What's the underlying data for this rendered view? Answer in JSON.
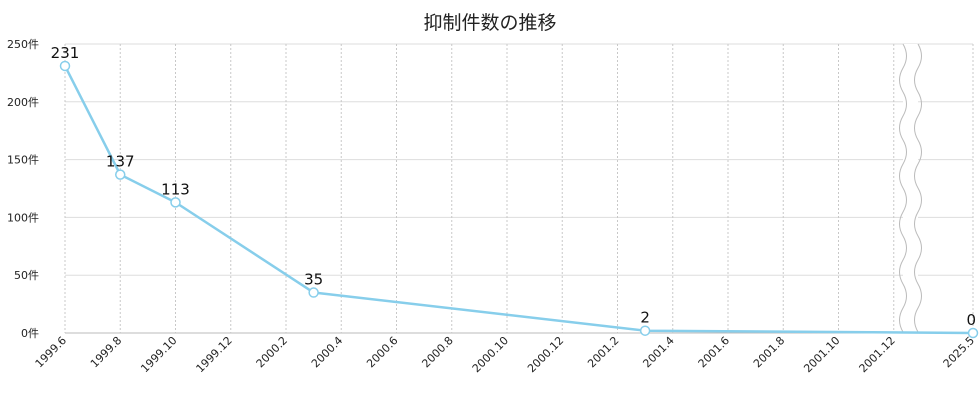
{
  "chart_data": {
    "type": "line",
    "title": "抑制件数の推移",
    "categories": [
      "1999.6",
      "1999.8",
      "1999.10",
      "1999.12",
      "2000.2",
      "2000.4",
      "2000.6",
      "2000.8",
      "2000.10",
      "2000.12",
      "2001.2",
      "2001.4",
      "2001.6",
      "2001.8",
      "2001.10",
      "2001.12",
      "2025.5"
    ],
    "yticks": [
      "0件",
      "50件",
      "100件",
      "150件",
      "200件",
      "250件"
    ],
    "ylim": [
      0,
      250
    ],
    "axis_break": "between 2001.12 and 2025.5",
    "series": [
      {
        "color": "#87CEEB",
        "points": [
          {
            "x": "1999.6",
            "y": 231
          },
          {
            "x": "1999.8",
            "y": 137
          },
          {
            "x": "1999.10",
            "y": 113
          },
          {
            "x": "2000.3",
            "y": 35
          },
          {
            "x": "2001.3",
            "y": 2
          },
          {
            "x": "2025.5",
            "y": 0
          }
        ]
      }
    ],
    "data_labels": [
      "231",
      "137",
      "113",
      "35",
      "2",
      "0"
    ],
    "grid": true
  }
}
